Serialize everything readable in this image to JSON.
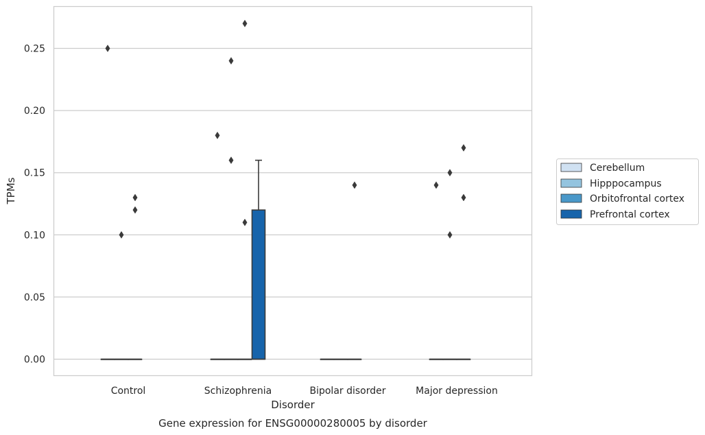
{
  "chart_data": {
    "type": "box",
    "title": "",
    "caption": "Gene expression for ENSG00000280005 by disorder",
    "xlabel": "Disorder",
    "ylabel": "TPMs",
    "ylim": [
      -0.013,
      0.284
    ],
    "yticks": [
      "0.00",
      "0.05",
      "0.10",
      "0.15",
      "0.20",
      "0.25"
    ],
    "ytick_values": [
      0.0,
      0.05,
      0.1,
      0.15,
      0.2,
      0.25
    ],
    "grid": "horizontal",
    "legend_position": "right",
    "categories": [
      "Control",
      "Schizophrenia",
      "Bipolar disorder",
      "Major depression"
    ],
    "series": [
      {
        "name": "Cerebellum",
        "color": "#d0e1f2",
        "boxes": [
          {
            "q1": 0,
            "median": 0,
            "q3": 0,
            "whisker_low": 0,
            "whisker_high": 0,
            "outliers": [
              0.25
            ]
          },
          {
            "q1": 0,
            "median": 0,
            "q3": 0,
            "whisker_low": 0,
            "whisker_high": 0,
            "outliers": [
              0.18
            ]
          },
          {
            "q1": 0,
            "median": 0,
            "q3": 0,
            "whisker_low": 0,
            "whisker_high": 0,
            "outliers": []
          },
          {
            "q1": 0,
            "median": 0,
            "q3": 0,
            "whisker_low": 0,
            "whisker_high": 0,
            "outliers": [
              0.14
            ]
          }
        ]
      },
      {
        "name": "Hipppocampus",
        "color": "#94c4df",
        "boxes": [
          {
            "q1": 0,
            "median": 0,
            "q3": 0,
            "whisker_low": 0,
            "whisker_high": 0,
            "outliers": [
              0.1
            ]
          },
          {
            "q1": 0,
            "median": 0,
            "q3": 0,
            "whisker_low": 0,
            "whisker_high": 0,
            "outliers": [
              0.24,
              0.16
            ]
          },
          {
            "q1": 0,
            "median": 0,
            "q3": 0,
            "whisker_low": 0,
            "whisker_high": 0,
            "outliers": []
          },
          {
            "q1": 0,
            "median": 0,
            "q3": 0,
            "whisker_low": 0,
            "whisker_high": 0,
            "outliers": [
              0.15,
              0.1
            ]
          }
        ]
      },
      {
        "name": "Orbitofrontal cortex",
        "color": "#4a98c9",
        "boxes": [
          {
            "q1": 0,
            "median": 0,
            "q3": 0,
            "whisker_low": 0,
            "whisker_high": 0,
            "outliers": [
              0.13,
              0.12
            ]
          },
          {
            "q1": 0,
            "median": 0,
            "q3": 0,
            "whisker_low": 0,
            "whisker_high": 0,
            "outliers": [
              0.27,
              0.11
            ]
          },
          {
            "q1": 0,
            "median": 0,
            "q3": 0,
            "whisker_low": 0,
            "whisker_high": 0,
            "outliers": [
              0.14
            ]
          },
          {
            "q1": 0,
            "median": 0,
            "q3": 0,
            "whisker_low": 0,
            "whisker_high": 0,
            "outliers": [
              0.17,
              0.13
            ]
          }
        ]
      },
      {
        "name": "Prefrontal cortex",
        "color": "#1764ab",
        "boxes": [
          null,
          {
            "q1": 0,
            "median": 0,
            "q3": 0.12,
            "whisker_low": 0,
            "whisker_high": 0.16,
            "outliers": []
          },
          null,
          null
        ]
      }
    ]
  }
}
